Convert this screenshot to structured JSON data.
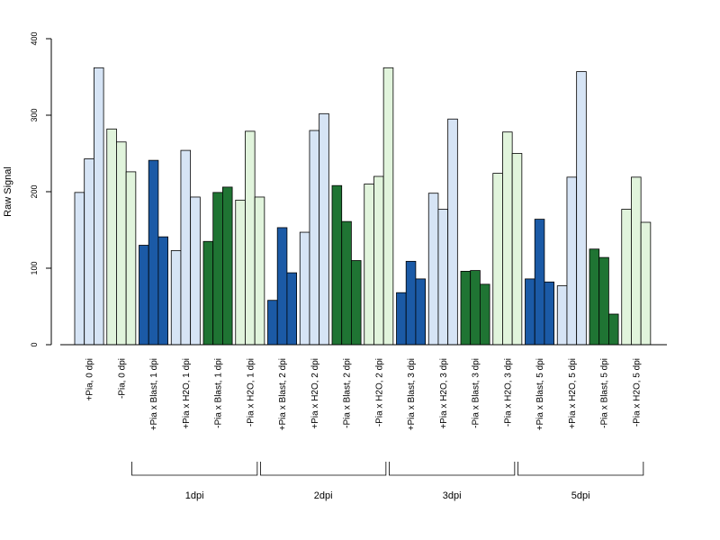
{
  "chart_data": {
    "type": "bar",
    "title": "",
    "xlabel": "",
    "ylabel": "Raw Signal",
    "ylim": [
      0,
      400
    ],
    "yticks": [
      0,
      100,
      200,
      300,
      400
    ],
    "grid": false,
    "legend": "none",
    "colors": {
      "light_blue": "#d6e4f5",
      "dark_blue": "#1b5aa6",
      "dark_green": "#1f7433",
      "light_green": "#e1f4dc",
      "stroke": "#000000"
    },
    "categories": [
      {
        "label": "+Pia, 0 dpi",
        "color": "light_blue",
        "values": [
          199,
          243,
          362
        ]
      },
      {
        "label": "-Pia, 0 dpi",
        "color": "light_green",
        "values": [
          282,
          265,
          226
        ]
      },
      {
        "label": "+Pia x Blast, 1 dpi",
        "color": "dark_blue",
        "values": [
          130,
          241,
          141
        ]
      },
      {
        "label": "+Pia x H2O, 1 dpi",
        "color": "light_blue",
        "values": [
          123,
          254,
          193
        ]
      },
      {
        "label": "-Pia x Blast, 1 dpi",
        "color": "dark_green",
        "values": [
          135,
          199,
          206
        ]
      },
      {
        "label": "-Pia x H2O, 1 dpi",
        "color": "light_green",
        "values": [
          189,
          279,
          193
        ]
      },
      {
        "label": "+Pia x Blast, 2 dpi",
        "color": "dark_blue",
        "values": [
          58,
          153,
          94
        ]
      },
      {
        "label": "+Pia x H2O, 2 dpi",
        "color": "light_blue",
        "values": [
          147,
          280,
          302
        ]
      },
      {
        "label": "-Pia x Blast, 2 dpi",
        "color": "dark_green",
        "values": [
          208,
          161,
          110
        ]
      },
      {
        "label": "-Pia x H2O, 2 dpi",
        "color": "light_green",
        "values": [
          210,
          220,
          362
        ]
      },
      {
        "label": "+Pia x Blast, 3 dpi",
        "color": "dark_blue",
        "values": [
          68,
          109,
          86
        ]
      },
      {
        "label": "+Pia x H2O, 3 dpi",
        "color": "light_blue",
        "values": [
          198,
          177,
          295
        ]
      },
      {
        "label": "-Pia x Blast, 3 dpi",
        "color": "dark_green",
        "values": [
          96,
          97,
          79
        ]
      },
      {
        "label": "-Pia x H2O, 3 dpi",
        "color": "light_green",
        "values": [
          224,
          278,
          250
        ]
      },
      {
        "label": "+Pia x Blast, 5 dpi",
        "color": "dark_blue",
        "values": [
          86,
          164,
          82
        ]
      },
      {
        "label": "+Pia x H2O, 5 dpi",
        "color": "light_blue",
        "values": [
          77,
          219,
          357
        ]
      },
      {
        "label": "-Pia x Blast, 5 dpi",
        "color": "dark_green",
        "values": [
          125,
          114,
          40
        ]
      },
      {
        "label": "-Pia x H2O, 5 dpi",
        "color": "light_green",
        "values": [
          177,
          219,
          160
        ]
      }
    ],
    "groups": [
      {
        "label": "1dpi",
        "first_category": 2,
        "last_category": 5
      },
      {
        "label": "2dpi",
        "first_category": 6,
        "last_category": 9
      },
      {
        "label": "3dpi",
        "first_category": 10,
        "last_category": 13
      },
      {
        "label": "5dpi",
        "first_category": 14,
        "last_category": 17
      }
    ]
  }
}
